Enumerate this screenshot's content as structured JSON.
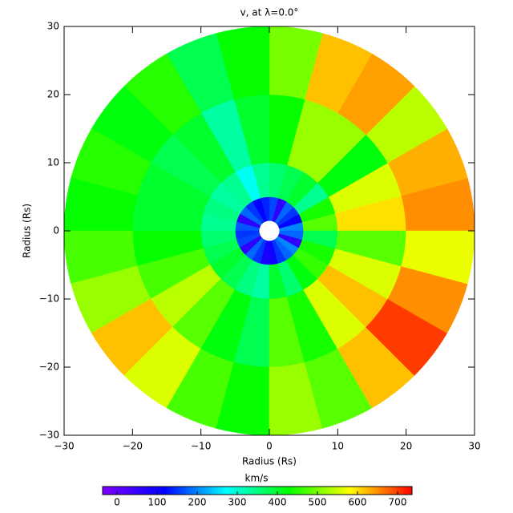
{
  "chart_data": {
    "type": "polar_heatmap",
    "title": "v, at λ=0.0°",
    "x_label": "Radius (Rs)",
    "y_label": "Radius (Rs)",
    "xlim": [
      -30,
      30
    ],
    "ylim": [
      -30,
      30
    ],
    "xticks": [
      {
        "value": -30,
        "label": "−30"
      },
      {
        "value": -20,
        "label": "−20"
      },
      {
        "value": -10,
        "label": "−10"
      },
      0,
      10,
      20,
      30
    ],
    "yticks": [
      {
        "value": -30,
        "label": "−30"
      },
      {
        "value": -20,
        "label": "−20"
      },
      {
        "value": -10,
        "label": "−10"
      },
      0,
      10,
      20,
      30
    ],
    "radius_edges": [
      1.5,
      5,
      10,
      20,
      30
    ],
    "angle_edges": [
      0,
      15,
      30,
      45,
      60,
      75,
      90,
      105,
      120,
      135,
      150,
      165,
      180,
      195,
      210,
      225,
      240,
      255,
      270,
      285,
      300,
      315,
      330,
      345,
      360
    ],
    "values": [
      [
        200,
        120,
        150,
        180,
        60,
        160,
        140,
        120,
        150,
        180,
        60,
        170,
        150,
        160,
        60,
        180,
        150,
        90,
        100,
        150,
        180,
        200,
        60,
        180
      ],
      [
        480,
        440,
        340,
        400,
        380,
        360,
        340,
        280,
        340,
        330,
        350,
        340,
        360,
        380,
        400,
        380,
        350,
        330,
        400,
        360,
        420,
        460,
        440,
        380
      ],
      [
        600,
        560,
        420,
        520,
        520,
        430,
        400,
        330,
        400,
        380,
        400,
        400,
        430,
        470,
        540,
        480,
        420,
        380,
        480,
        440,
        560,
        620,
        560,
        480
      ],
      [
        650,
        630,
        540,
        640,
        620,
        500,
        430,
        380,
        450,
        420,
        450,
        430,
        470,
        520,
        620,
        560,
        470,
        430,
        520,
        480,
        620,
        700,
        650,
        570
      ]
    ],
    "colorbar_label": "km/s",
    "clim": [
      -36,
      736
    ],
    "colorbar_ticks": [
      0,
      100,
      200,
      300,
      400,
      500,
      600,
      700
    ],
    "colormap": [
      "#7f00ff",
      "#0000ff",
      "#00ffff",
      "#00ff00",
      "#ffff00",
      "#ff0000"
    ]
  }
}
